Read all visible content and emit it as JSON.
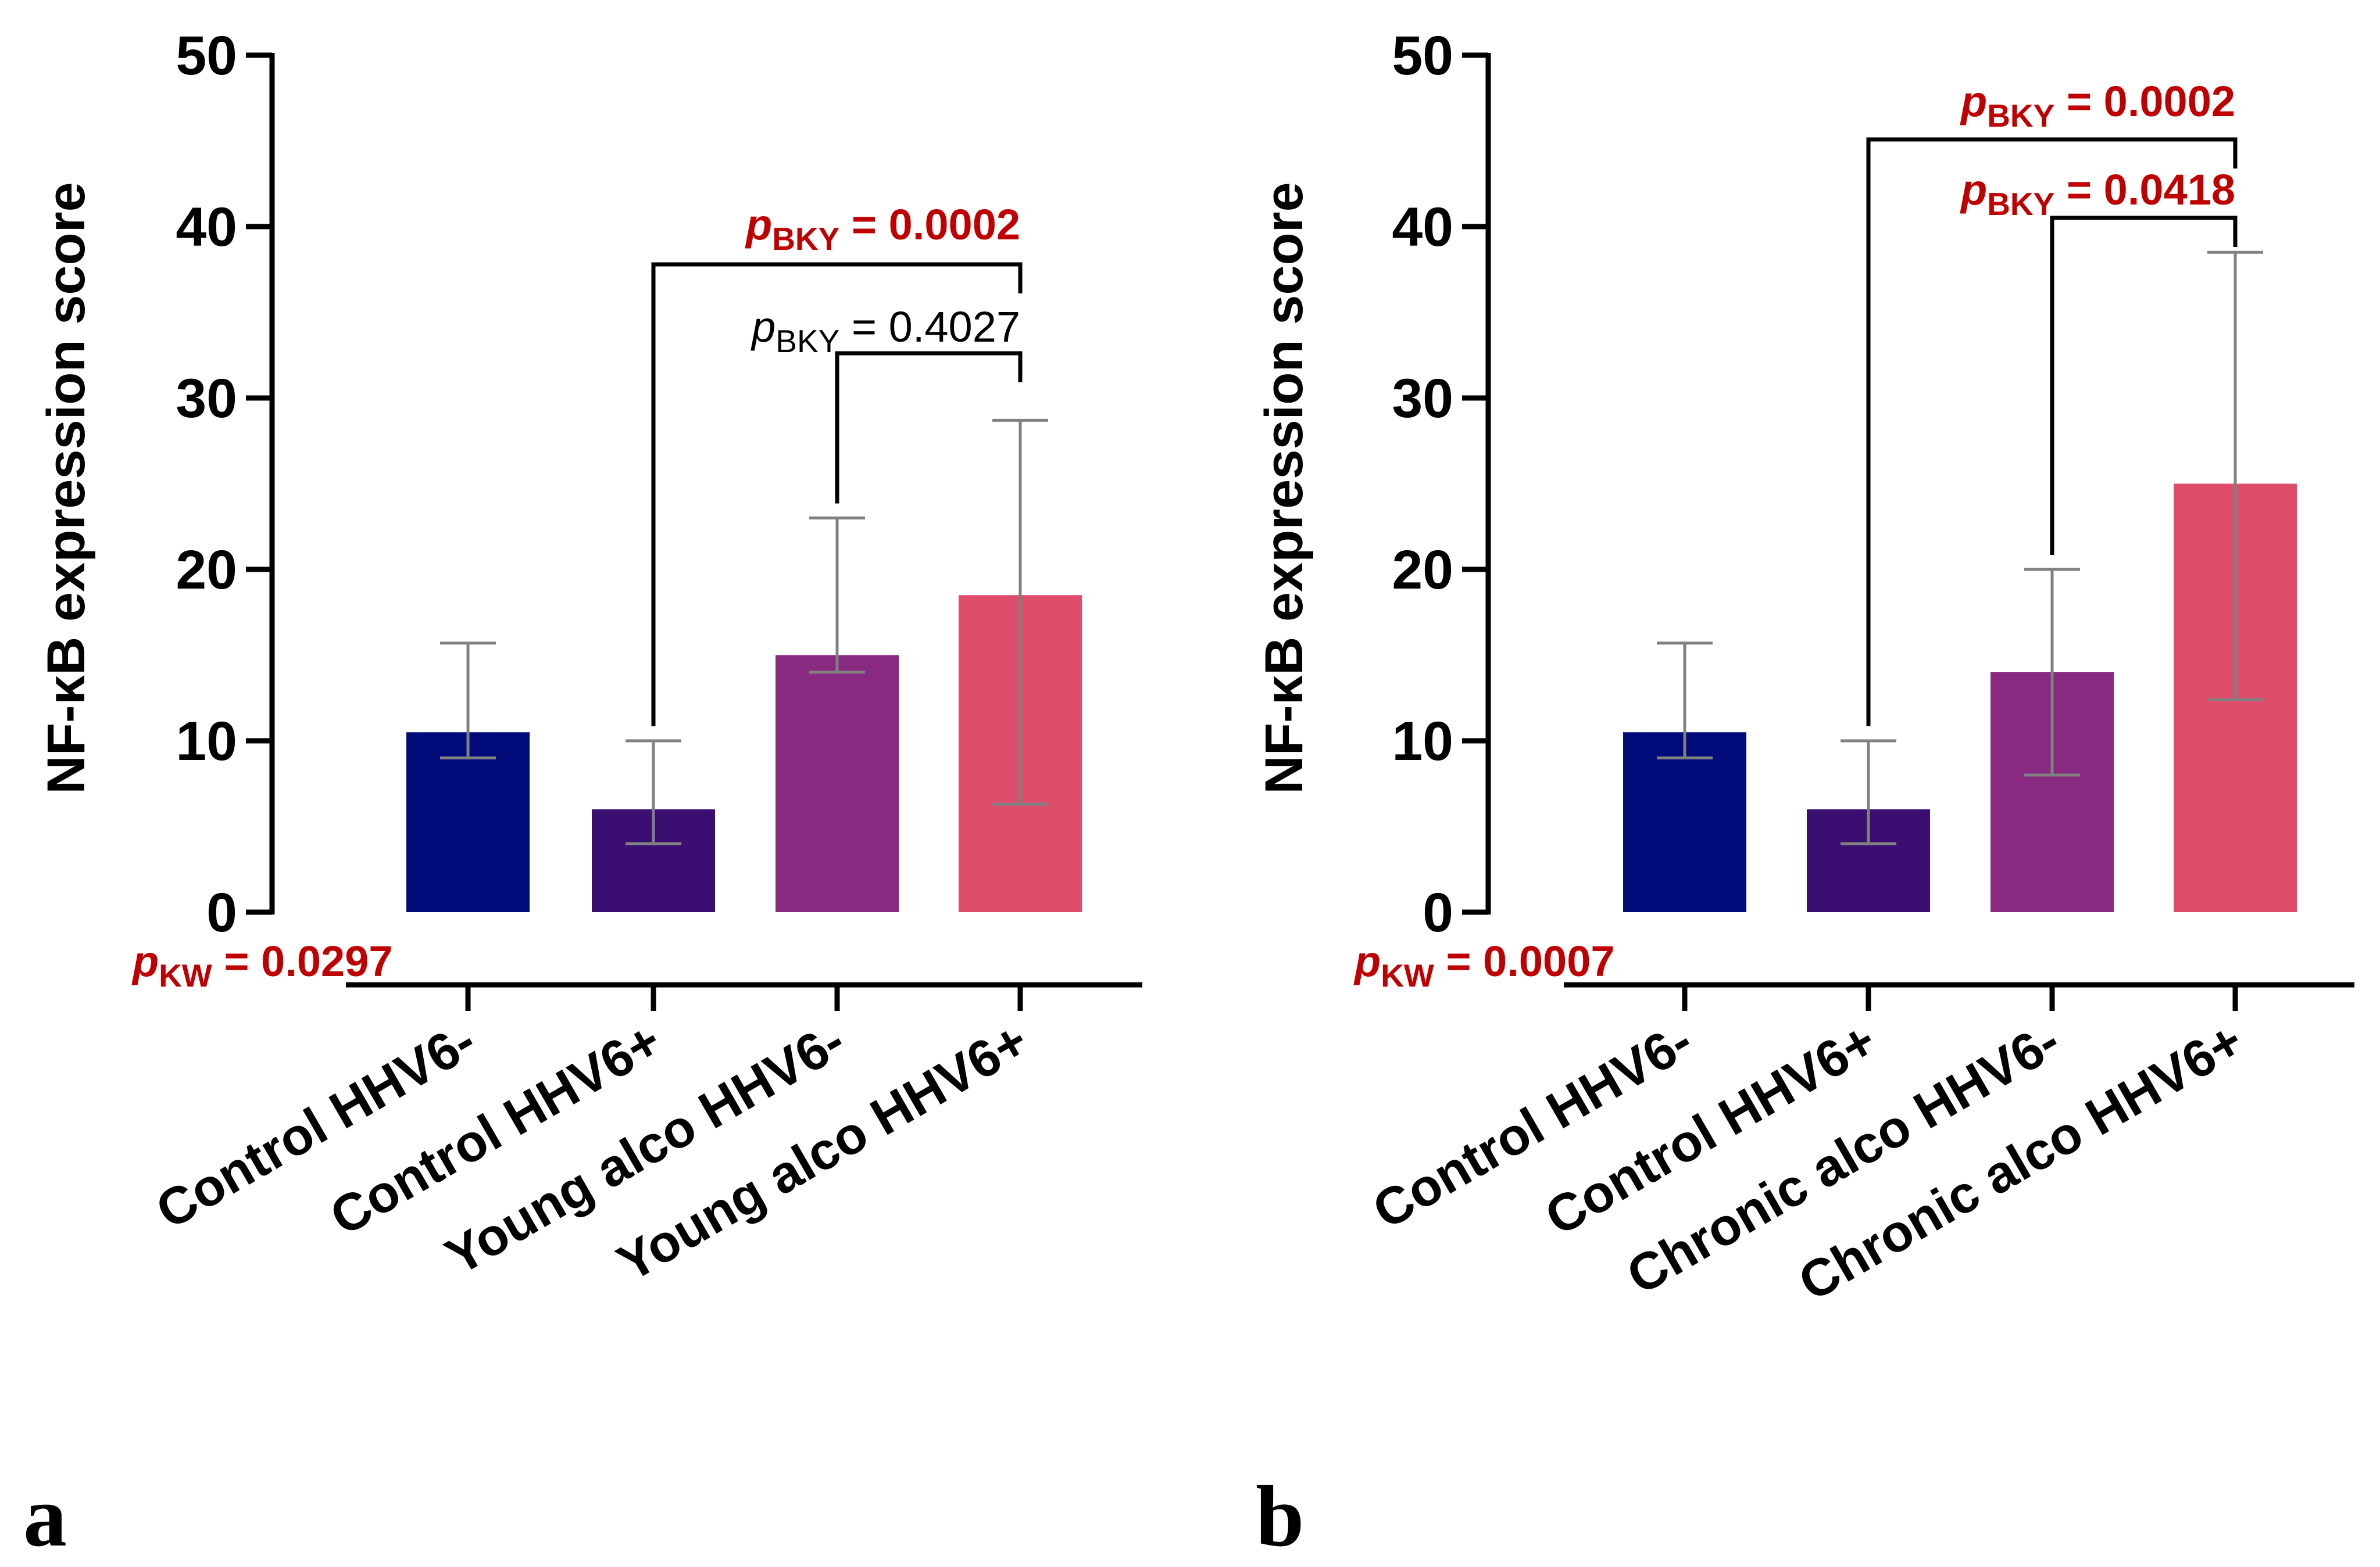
{
  "chart_data": [
    {
      "panel": "a",
      "type": "bar",
      "ylabel": "NF-κB expression score",
      "ylim": [
        0,
        50
      ],
      "yticks": [
        0,
        10,
        20,
        30,
        40,
        50
      ],
      "categories": [
        "Control HHV6-",
        "Control HHV6+",
        "Young alco HHV6-",
        "Young alco HHV6+"
      ],
      "values": [
        10.5,
        6.0,
        15.0,
        18.5
      ],
      "error_low": [
        9.0,
        4.0,
        14.0,
        6.3
      ],
      "error_high": [
        15.7,
        10.0,
        23.0,
        28.7
      ],
      "colors": [
        "#020b7a",
        "#3b0f72",
        "#882a80",
        "#de4d6a"
      ],
      "kw_test": {
        "prefix": "p",
        "sub": "KW",
        "text": " = 0.0297",
        "color": "#c00000"
      },
      "comparisons": [
        {
          "from": 1,
          "to": 3,
          "prefix": "p",
          "sub": "BKY",
          "text": " = 0.0002",
          "color": "#c00000",
          "bold": true
        },
        {
          "from": 2,
          "to": 3,
          "prefix": "p",
          "sub": "BKY",
          "text": " = 0.4027",
          "color": "#000000",
          "bold": false
        }
      ]
    },
    {
      "panel": "b",
      "type": "bar",
      "ylabel": "NF-κB expression score",
      "ylim": [
        0,
        50
      ],
      "yticks": [
        0,
        10,
        20,
        30,
        40,
        50
      ],
      "categories": [
        "Control HHV6-",
        "Control HHV6+",
        "Chronic alco HHV6-",
        "Chronic alco HHV6+"
      ],
      "values": [
        10.5,
        6.0,
        14.0,
        25.0
      ],
      "error_low": [
        9.0,
        4.0,
        8.0,
        12.4
      ],
      "error_high": [
        15.7,
        10.0,
        20.0,
        38.5
      ],
      "colors": [
        "#020b7a",
        "#3b0f72",
        "#882a80",
        "#de4d6a"
      ],
      "kw_test": {
        "prefix": "p",
        "sub": "KW",
        "text": " = 0.0007",
        "color": "#c00000"
      },
      "comparisons": [
        {
          "from": 1,
          "to": 3,
          "prefix": "p",
          "sub": "BKY",
          "text": " = 0.0002",
          "color": "#c00000",
          "bold": true
        },
        {
          "from": 2,
          "to": 3,
          "prefix": "p",
          "sub": "BKY",
          "text": " = 0.0418",
          "color": "#c00000",
          "bold": true
        }
      ]
    }
  ]
}
